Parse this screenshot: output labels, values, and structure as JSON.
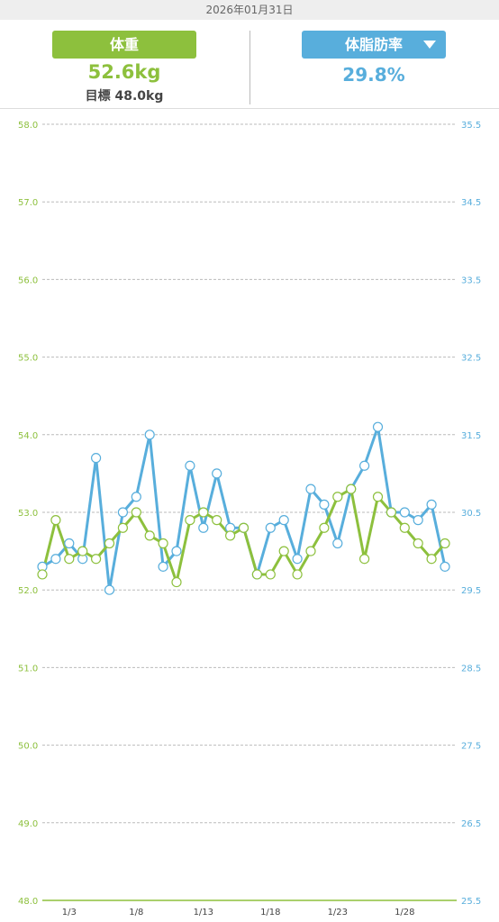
{
  "header": {
    "date": "2026年01月31日"
  },
  "weight": {
    "label": "体重",
    "value": "52.6kg",
    "target": "目標 48.0kg"
  },
  "body_fat": {
    "label": "体脂肪率",
    "value": "29.8%",
    "dropdown_icon": "chevron-down-icon"
  },
  "colors": {
    "weight": "#8dc03d",
    "fat": "#58aedc",
    "grid": "#bbbbbb"
  },
  "chart_data": {
    "type": "line",
    "x": [
      1,
      2,
      3,
      4,
      5,
      6,
      7,
      8,
      9,
      10,
      11,
      12,
      13,
      14,
      15,
      16,
      17,
      18,
      19,
      20,
      21,
      22,
      23,
      24,
      25,
      26,
      27,
      28,
      29,
      30,
      31
    ],
    "x_ticks": [
      {
        "x": 3,
        "label": "1/3"
      },
      {
        "x": 8,
        "label": "1/8"
      },
      {
        "x": 13,
        "label": "1/13"
      },
      {
        "x": 18,
        "label": "1/18"
      },
      {
        "x": 23,
        "label": "1/23"
      },
      {
        "x": 28,
        "label": "1/28"
      }
    ],
    "left_axis": {
      "ylim": [
        48.0,
        58.0
      ],
      "ticks": [
        "48.0",
        "49.0",
        "50.0",
        "51.0",
        "52.0",
        "53.0",
        "54.0",
        "55.0",
        "56.0",
        "57.0",
        "58.0"
      ]
    },
    "right_axis": {
      "ylim": [
        25.5,
        35.5
      ],
      "ticks": [
        "25.5",
        "26.5",
        "27.5",
        "28.5",
        "29.5",
        "30.5",
        "31.5",
        "32.5",
        "33.5",
        "34.5",
        "35.5"
      ]
    },
    "grid": true,
    "series": [
      {
        "name": "体重",
        "axis": "left",
        "color": "#8dc03d",
        "values": [
          52.2,
          52.9,
          52.4,
          52.5,
          52.4,
          52.6,
          52.8,
          53.0,
          52.7,
          52.6,
          52.1,
          52.9,
          53.0,
          52.9,
          52.7,
          52.8,
          52.2,
          52.2,
          52.5,
          52.2,
          52.5,
          52.8,
          53.2,
          53.3,
          52.4,
          53.2,
          53.0,
          52.8,
          52.6,
          52.4,
          52.6
        ]
      },
      {
        "name": "体脂肪率",
        "axis": "right",
        "color": "#58aedc",
        "values": [
          29.8,
          29.9,
          30.1,
          29.9,
          31.2,
          29.5,
          30.5,
          30.7,
          31.5,
          29.8,
          30.0,
          31.1,
          30.3,
          31.0,
          30.3,
          30.3,
          29.7,
          30.3,
          30.4,
          29.9,
          30.8,
          30.6,
          30.1,
          30.8,
          31.1,
          31.6,
          30.5,
          30.5,
          30.4,
          30.6,
          29.8
        ]
      }
    ]
  }
}
